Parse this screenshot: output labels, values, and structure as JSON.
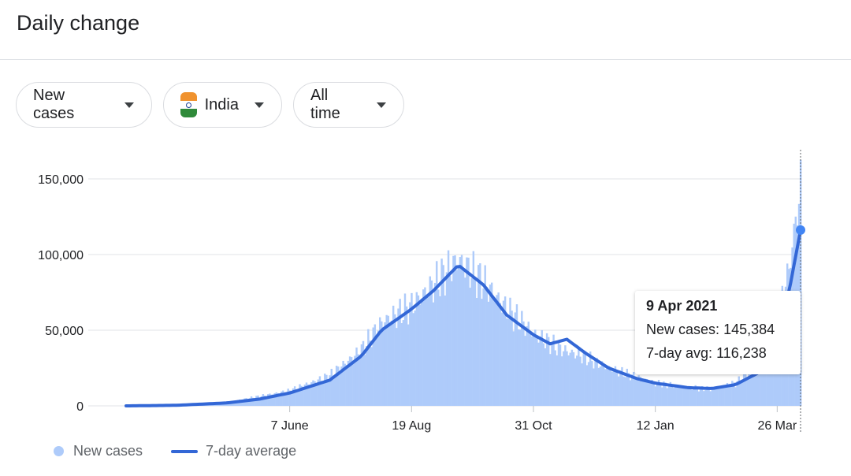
{
  "header": {
    "title": "Daily change"
  },
  "filters": {
    "metric": "New cases",
    "country": "India",
    "range": "All time"
  },
  "tooltip": {
    "date": "9 Apr 2021",
    "cases_label": "New cases:",
    "cases_value": "145,384",
    "avg_label": "7-day avg:",
    "avg_value": "116,238"
  },
  "legend": {
    "bars": "New cases",
    "line": "7-day average"
  },
  "colors": {
    "bars": "#aecbfa",
    "line": "#3367d6",
    "grid": "#e0e3e7"
  },
  "chart_data": {
    "type": "bar",
    "title": "",
    "xlabel": "",
    "ylabel": "",
    "ylim": [
      0,
      150000
    ],
    "yticks": [
      "0",
      "50,000",
      "100,000",
      "150,000"
    ],
    "xticks": [
      "7 June",
      "19 Aug",
      "31 Oct",
      "12 Jan",
      "26 Mar"
    ],
    "grid": true,
    "legend_position": "bottom-left",
    "x_range": [
      "2020-03-01",
      "2021-04-09"
    ],
    "series": [
      {
        "name": "New cases",
        "kind": "bar",
        "keypoints": [
          [
            "2020-03-01",
            0
          ],
          [
            "2020-04-01",
            500
          ],
          [
            "2020-05-01",
            2500
          ],
          [
            "2020-06-07",
            10000
          ],
          [
            "2020-07-01",
            20000
          ],
          [
            "2020-07-20",
            37000
          ],
          [
            "2020-08-01",
            55000
          ],
          [
            "2020-08-19",
            66000
          ],
          [
            "2020-09-01",
            80000
          ],
          [
            "2020-09-16",
            96000
          ],
          [
            "2020-10-01",
            82000
          ],
          [
            "2020-10-15",
            64000
          ],
          [
            "2020-10-31",
            48000
          ],
          [
            "2020-11-15",
            38000
          ],
          [
            "2020-12-01",
            32000
          ],
          [
            "2020-12-15",
            25000
          ],
          [
            "2021-01-01",
            19000
          ],
          [
            "2021-01-12",
            15000
          ],
          [
            "2021-02-01",
            12000
          ],
          [
            "2021-02-15",
            11000
          ],
          [
            "2021-03-01",
            15000
          ],
          [
            "2021-03-15",
            27000
          ],
          [
            "2021-03-26",
            60000
          ],
          [
            "2021-04-02",
            90000
          ],
          [
            "2021-04-09",
            145384
          ]
        ]
      },
      {
        "name": "7-day average",
        "kind": "line",
        "keypoints": [
          [
            "2020-03-01",
            0
          ],
          [
            "2020-04-01",
            400
          ],
          [
            "2020-05-01",
            2000
          ],
          [
            "2020-05-20",
            4500
          ],
          [
            "2020-06-07",
            8500
          ],
          [
            "2020-07-01",
            17000
          ],
          [
            "2020-07-20",
            33000
          ],
          [
            "2020-08-01",
            50000
          ],
          [
            "2020-08-19",
            64000
          ],
          [
            "2020-09-01",
            76000
          ],
          [
            "2020-09-16",
            93000
          ],
          [
            "2020-10-01",
            80000
          ],
          [
            "2020-10-15",
            60000
          ],
          [
            "2020-10-31",
            47000
          ],
          [
            "2020-11-10",
            41000
          ],
          [
            "2020-11-20",
            44000
          ],
          [
            "2020-12-01",
            35000
          ],
          [
            "2020-12-15",
            25000
          ],
          [
            "2021-01-01",
            18000
          ],
          [
            "2021-01-12",
            15000
          ],
          [
            "2021-02-01",
            12000
          ],
          [
            "2021-02-15",
            11500
          ],
          [
            "2021-03-01",
            14000
          ],
          [
            "2021-03-15",
            22000
          ],
          [
            "2021-03-26",
            45000
          ],
          [
            "2021-04-02",
            75000
          ],
          [
            "2021-04-09",
            116238
          ]
        ]
      }
    ]
  }
}
